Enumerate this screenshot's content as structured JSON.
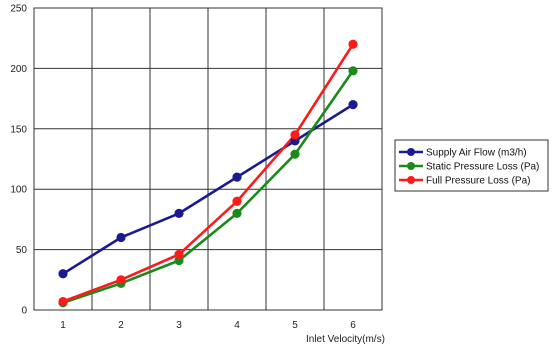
{
  "chart_data": {
    "type": "line",
    "title": "",
    "xlabel": "Inlet  Velocity(m/s)",
    "ylabel": "",
    "x": [
      1,
      2,
      3,
      4,
      5,
      6
    ],
    "x_tick_labels": [
      "1",
      "2",
      "3",
      "4",
      "5",
      "6"
    ],
    "xlim": [
      0.5,
      6.5
    ],
    "ylim": [
      0,
      250
    ],
    "y_ticks": [
      0,
      50,
      100,
      150,
      200,
      250
    ],
    "grid": true,
    "legend_position": "right",
    "series": [
      {
        "name": "Supply Air Flow (m3/h)",
        "color": "#1b1b8f",
        "values": [
          30,
          60,
          80,
          110,
          140,
          170
        ]
      },
      {
        "name": "Static Pressure Loss (Pa)",
        "color": "#1a8a1a",
        "values": [
          6,
          22,
          41,
          80,
          129,
          198
        ]
      },
      {
        "name": "Full Pressure Loss (Pa)",
        "color": "#ff1a1a",
        "values": [
          7,
          25,
          46,
          90,
          145,
          220
        ]
      }
    ]
  }
}
